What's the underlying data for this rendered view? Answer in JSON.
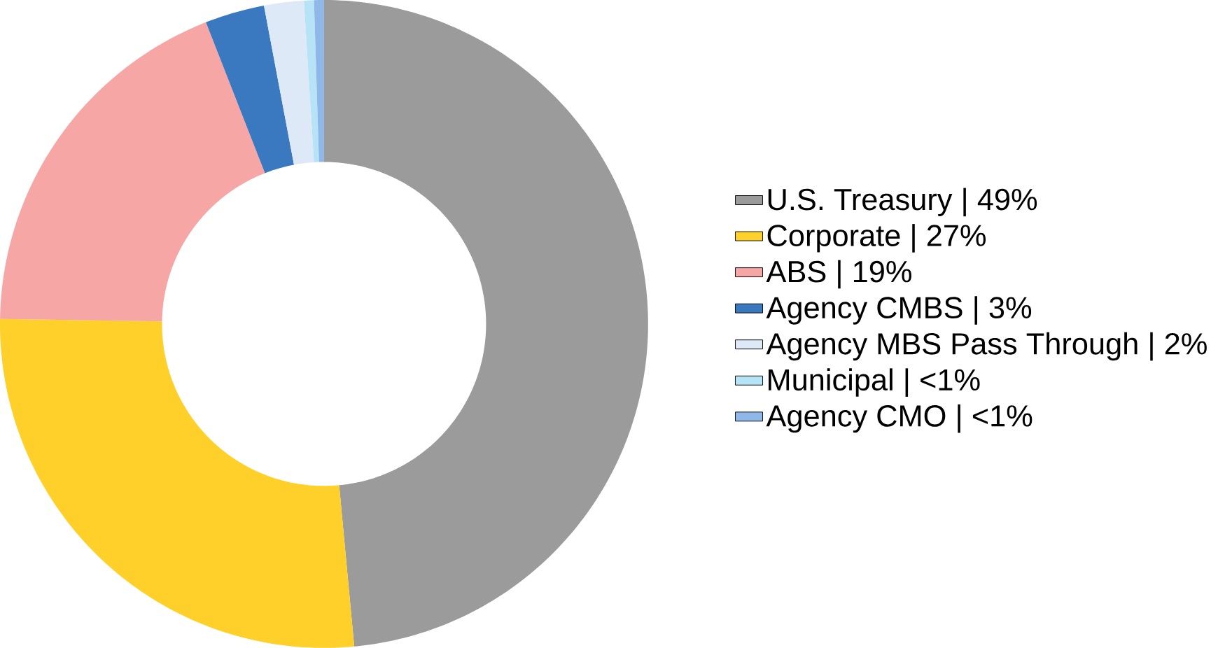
{
  "chart_data": {
    "type": "donut",
    "categories": [
      "U.S. Treasury | 49%",
      "Corporate | 27%",
      "ABS | 19%",
      "Agency CMBS | 3%",
      "Agency MBS Pass Through | 2%",
      "Municipal | <1%",
      "Agency CMO | <1%"
    ],
    "values": [
      49,
      27,
      19,
      3,
      2,
      0.5,
      0.5
    ],
    "colors": [
      "#9b9b9b",
      "#ffd02a",
      "#f7a6a6",
      "#3a78bf",
      "#dde9f7",
      "#b7e3f7",
      "#8fb8e8"
    ],
    "legend": "right"
  }
}
